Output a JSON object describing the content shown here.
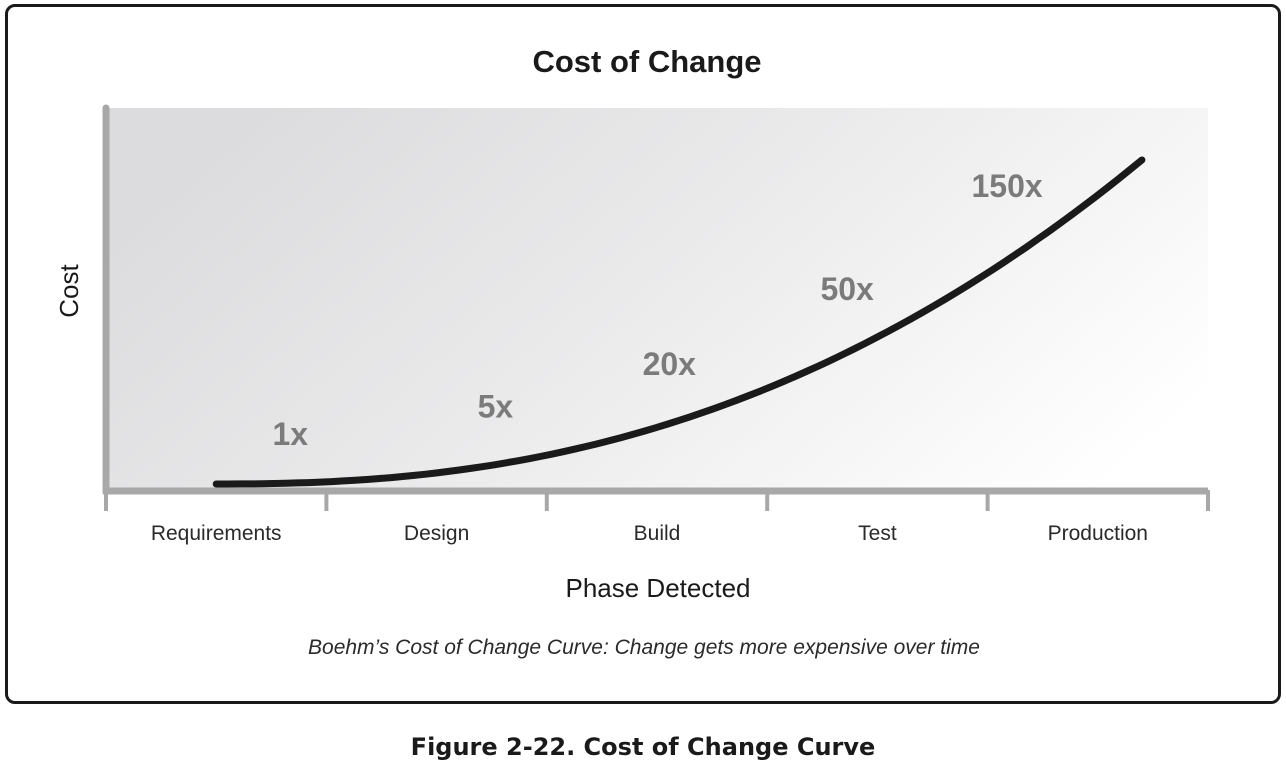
{
  "chart_data": {
    "type": "line",
    "title": "Cost of Change",
    "xlabel": "Phase Detected",
    "ylabel": "Cost",
    "categories": [
      "Requirements",
      "Design",
      "Build",
      "Test",
      "Production"
    ],
    "series": [
      {
        "values": [
          1,
          5,
          20,
          50,
          150
        ],
        "color": "#1a1a1a"
      }
    ],
    "data_labels": [
      "1x",
      "5x",
      "20x",
      "50x",
      "150x"
    ],
    "caption": "Boehm’s Cost of Change Curve: Change gets more expensive over time",
    "grid": false,
    "legend": "none",
    "background": "gray gradient fading to white",
    "axis_color": "#a8a8a8",
    "label_color": "#7b7b7b"
  },
  "figure_caption": "Figure 2-22. Cost of Change Curve"
}
